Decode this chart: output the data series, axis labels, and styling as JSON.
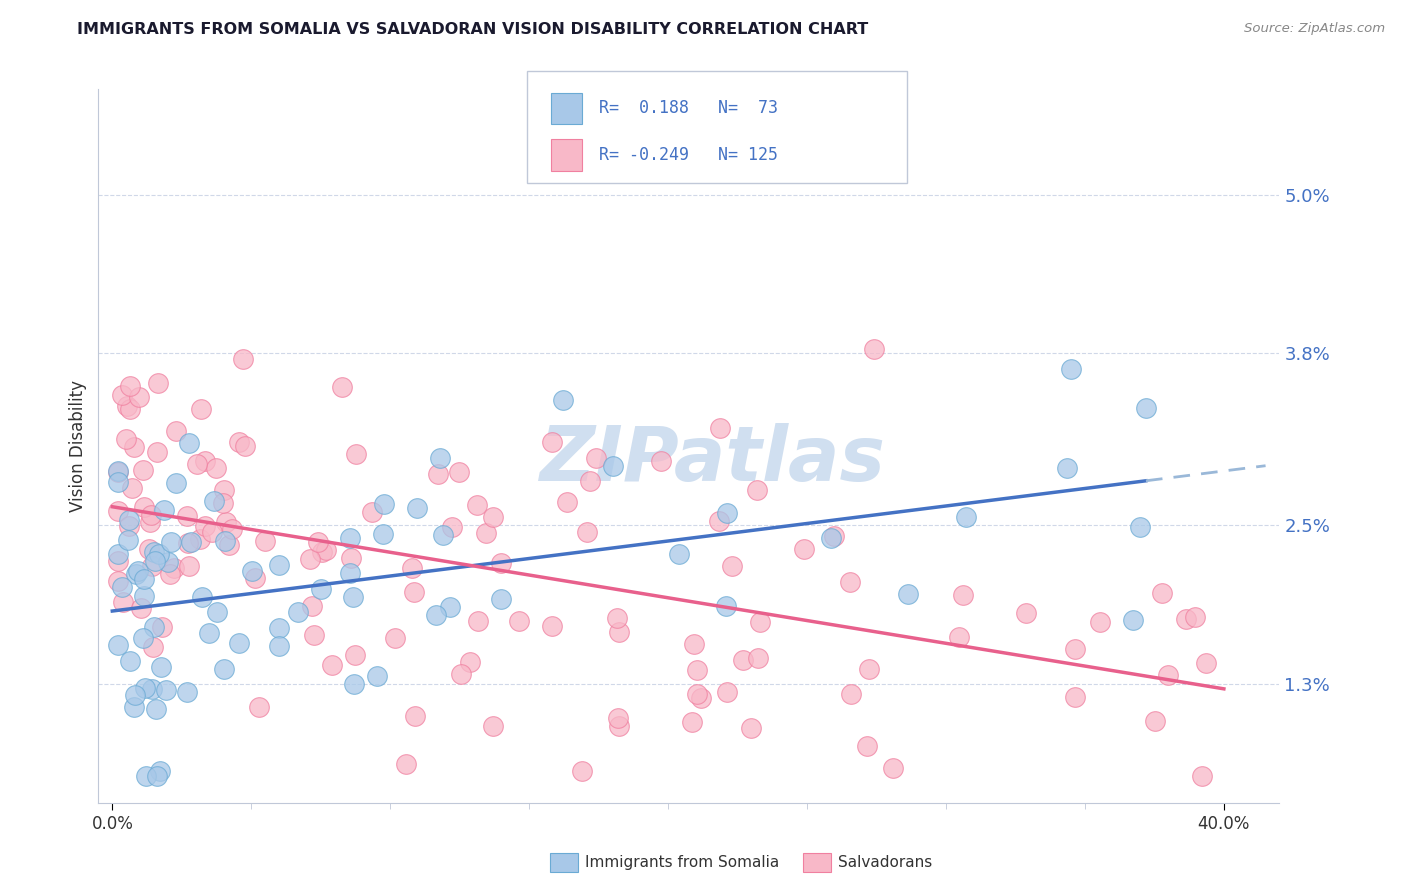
{
  "title": "IMMIGRANTS FROM SOMALIA VS SALVADORAN VISION DISABILITY CORRELATION CHART",
  "source": "Source: ZipAtlas.com",
  "ylabel": "Vision Disability",
  "y_tick_labels": [
    "1.3%",
    "2.5%",
    "3.8%",
    "5.0%"
  ],
  "y_tick_values": [
    0.013,
    0.025,
    0.038,
    0.05
  ],
  "x_tick_labels": [
    "0.0%",
    "40.0%"
  ],
  "x_tick_values": [
    0.0,
    0.4
  ],
  "xlim": [
    -0.005,
    0.42
  ],
  "ylim": [
    0.004,
    0.058
  ],
  "legend_entries": [
    {
      "label": "Immigrants from Somalia",
      "color": "#a8c8e8",
      "border": "#6aaad4",
      "R": " 0.188",
      "N": " 73"
    },
    {
      "label": "Salvadorans",
      "color": "#f8b8c8",
      "border": "#f080a0",
      "R": "-0.249",
      "N": "125"
    }
  ],
  "blue_line_color": "#4472c4",
  "pink_line_color": "#e8608c",
  "dashed_line_color": "#9ab8d8",
  "watermark_text": "ZIPatlas",
  "watermark_color": "#d0dff0",
  "background_color": "#ffffff",
  "grid_color": "#d0d8e8",
  "spine_color": "#c0c8d8",
  "ytick_color": "#4472c4",
  "title_color": "#1a1a2e",
  "source_color": "#888888",
  "legend_box_color": "#e8eef8",
  "legend_border_color": "#c0c8d8"
}
